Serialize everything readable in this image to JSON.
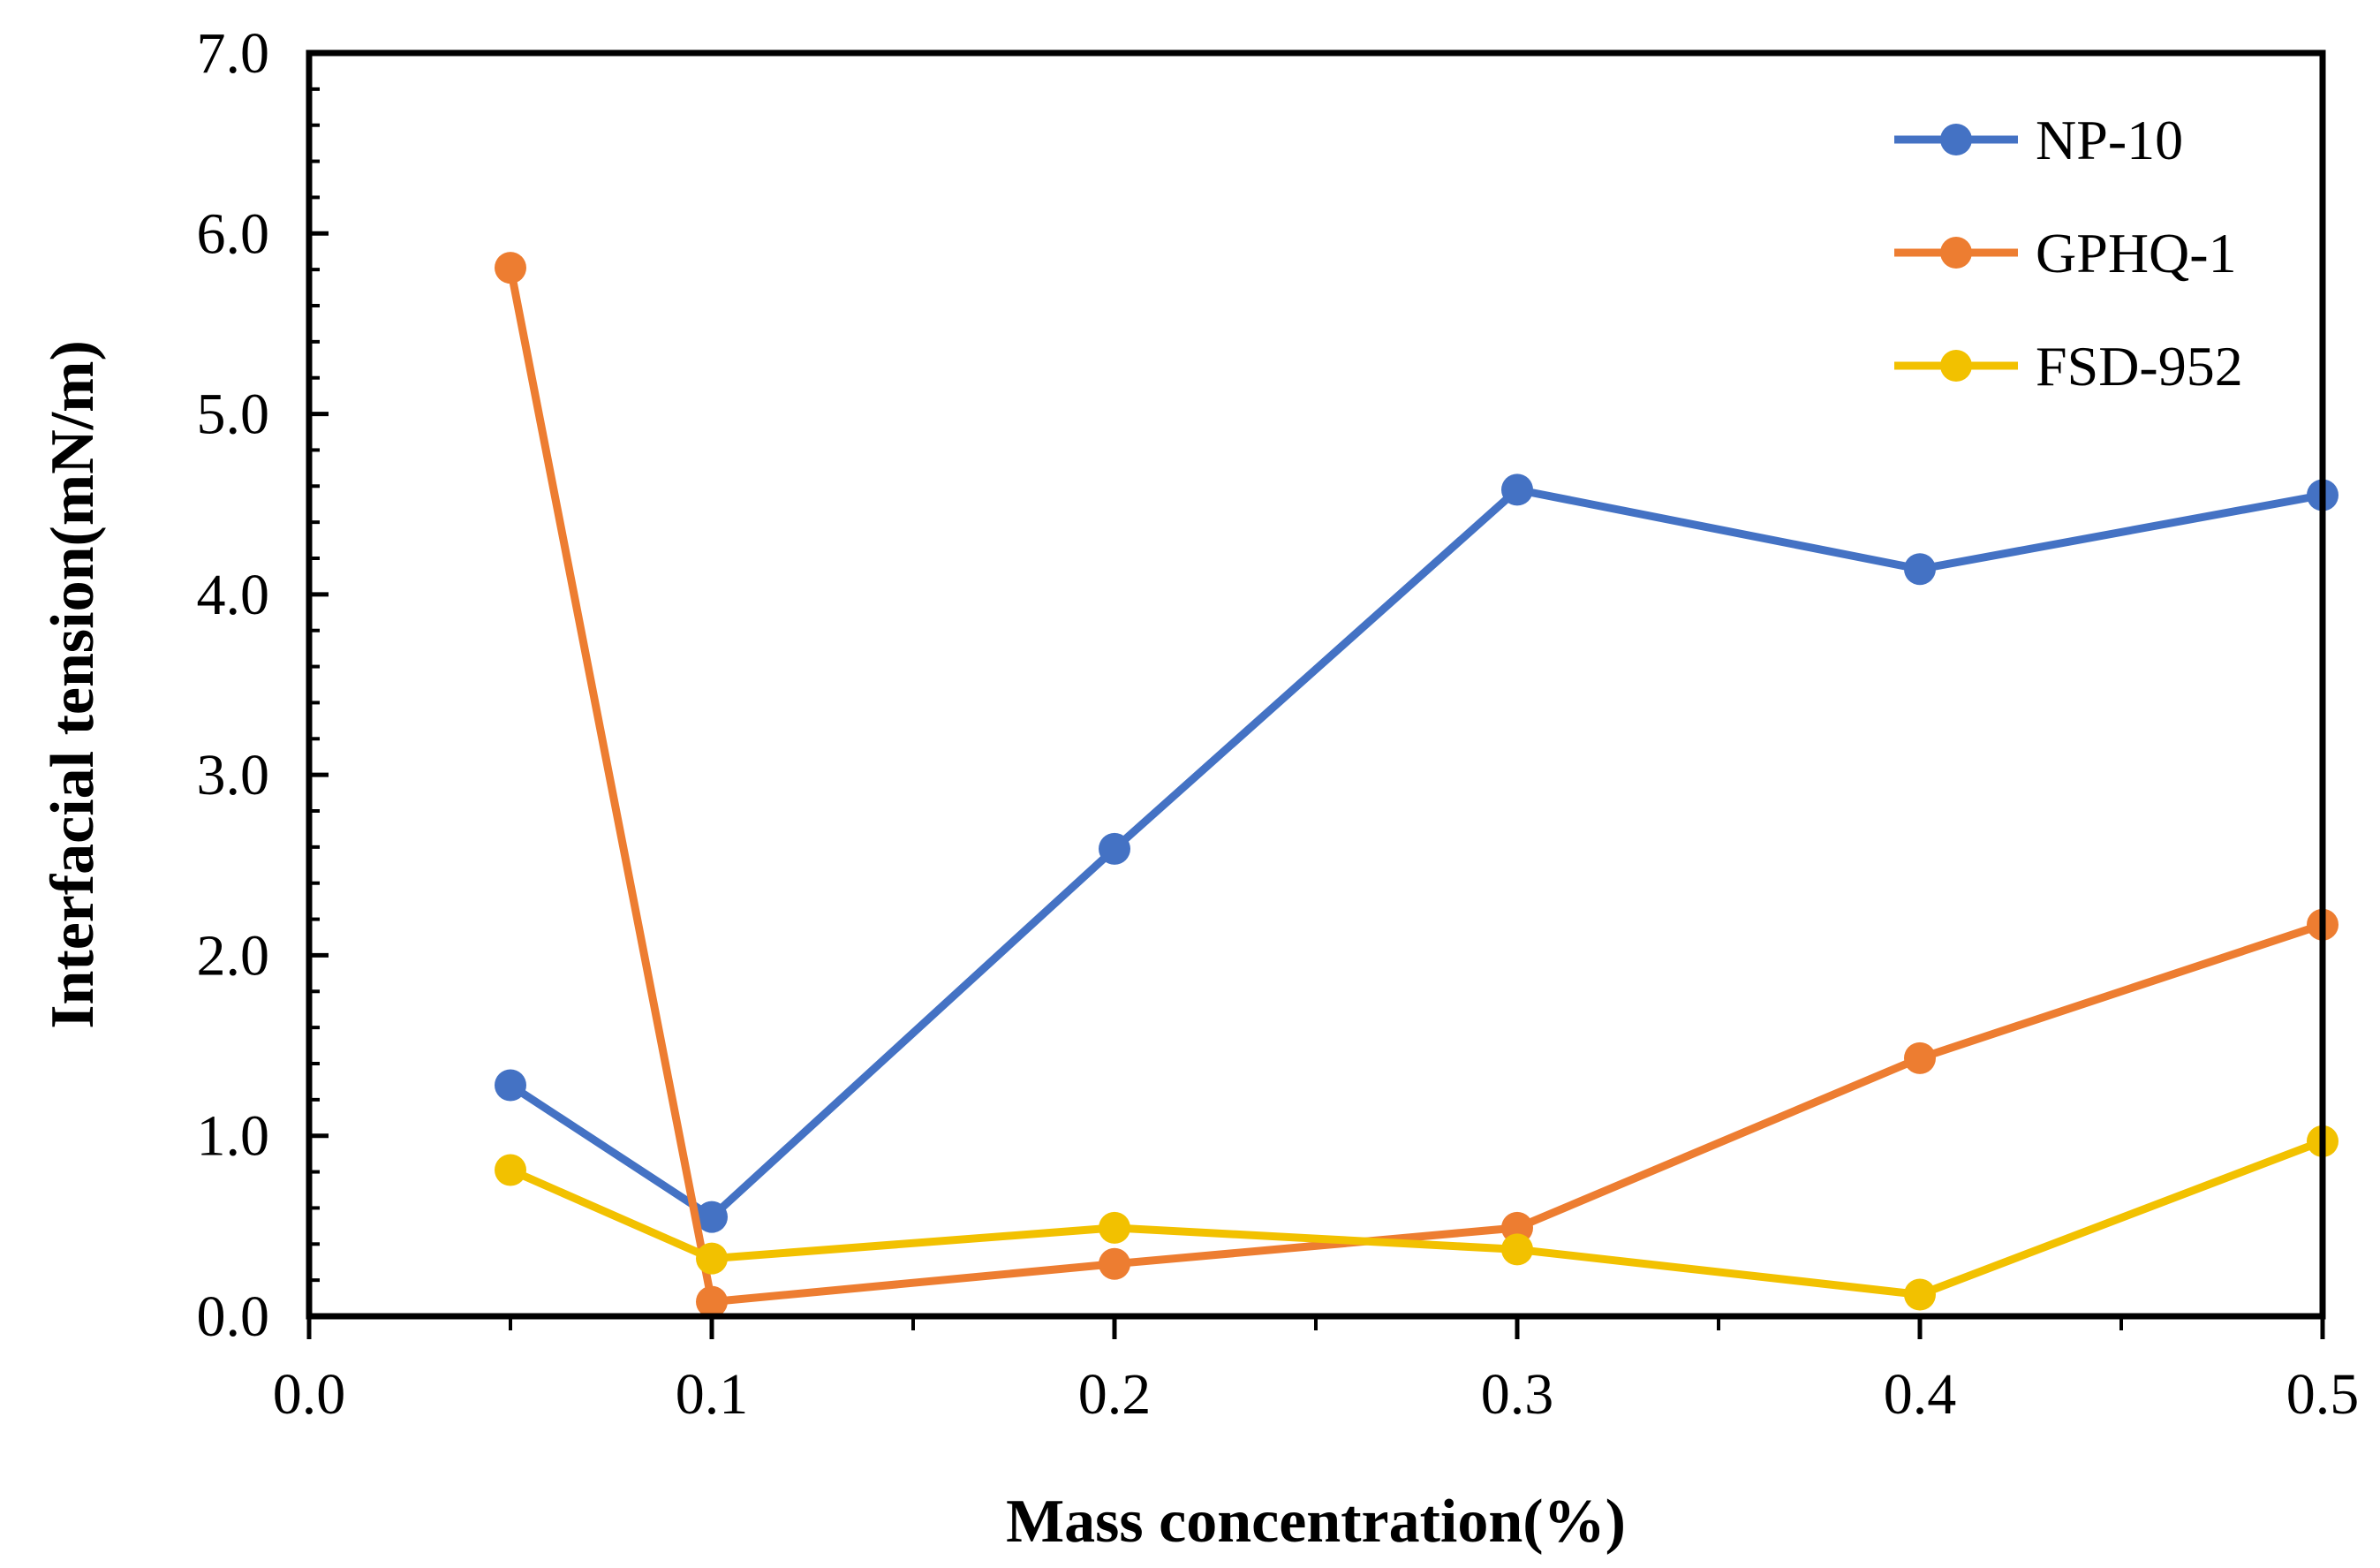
{
  "chart_data": {
    "type": "line",
    "xlabel": "Mass concentration(%)",
    "ylabel": "Interfacial tension(mN/m)",
    "xlim": [
      0,
      0.5
    ],
    "ylim": [
      0,
      7
    ],
    "x_ticks": [
      0.0,
      0.1,
      0.2,
      0.3,
      0.4,
      0.5
    ],
    "x_tick_labels": [
      "0.0",
      "0.1",
      "0.2",
      "0.3",
      "0.4",
      "0.5"
    ],
    "y_ticks": [
      0,
      1,
      2,
      3,
      4,
      5,
      6,
      7
    ],
    "y_tick_labels": [
      "0.0",
      "1.0",
      "2.0",
      "3.0",
      "4.0",
      "5.0",
      "6.0",
      "7.0"
    ],
    "x_minor_step": 0.05,
    "y_minor_step": 0.2,
    "grid": false,
    "legend_position": "top-right",
    "x": [
      0.05,
      0.1,
      0.2,
      0.3,
      0.4,
      0.5
    ],
    "series": [
      {
        "name": "NP-10",
        "color": "#4472C4",
        "values": [
          1.28,
          0.55,
          2.59,
          4.58,
          4.14,
          4.55
        ]
      },
      {
        "name": "GPHQ-1",
        "color": "#ED7D31",
        "values": [
          5.81,
          0.08,
          0.29,
          0.49,
          1.43,
          2.17
        ]
      },
      {
        "name": "FSD-952",
        "color": "#F2C100",
        "values": [
          0.81,
          0.32,
          0.49,
          0.37,
          0.12,
          0.97
        ]
      }
    ]
  }
}
